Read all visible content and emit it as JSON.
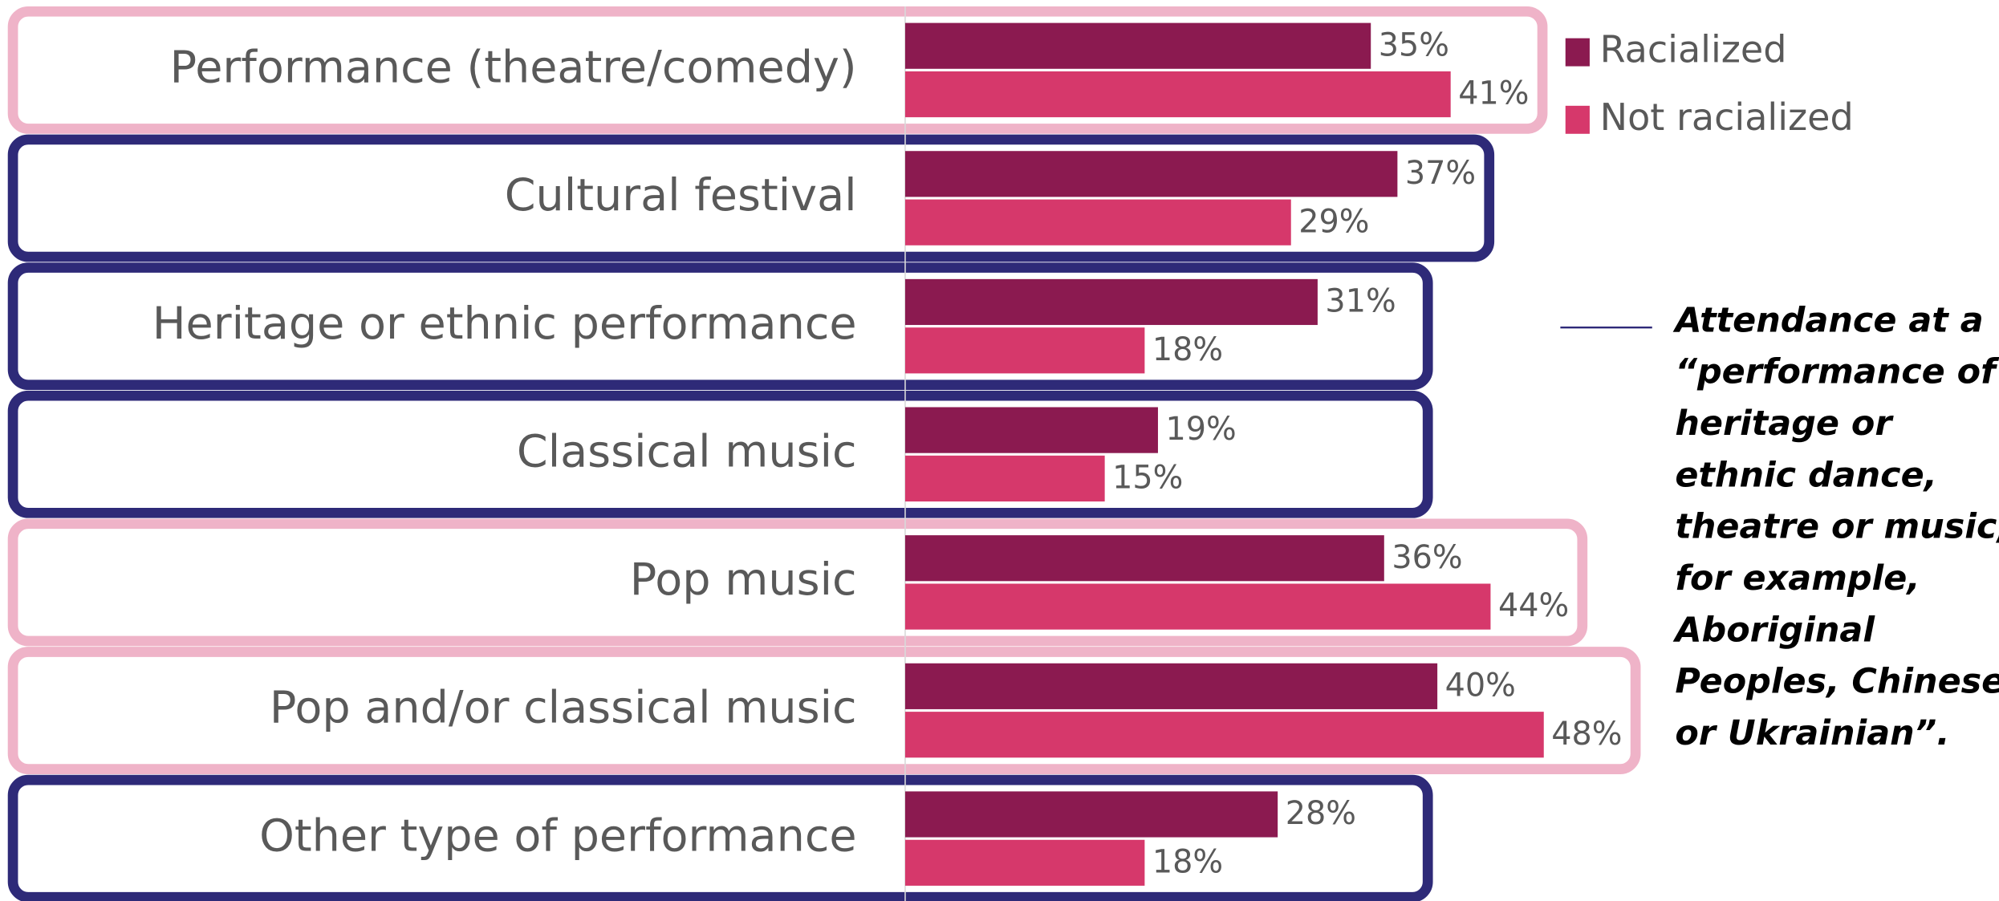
{
  "chart_data": {
    "type": "barh",
    "categories": [
      "Performance (theatre/comedy)",
      "Cultural festival",
      "Heritage or ethnic performance",
      "Classical music",
      "Pop music",
      "Pop and/or classical music",
      "Other type of performance"
    ],
    "series": [
      {
        "name": "Racialized",
        "color": "#8b1a50",
        "values": [
          35,
          37,
          31,
          19,
          36,
          40,
          28
        ],
        "value_labels": [
          "35%",
          "37%",
          "31%",
          "19%",
          "36%",
          "40%",
          "28%"
        ]
      },
      {
        "name": "Not racialized",
        "color": "#d6386b",
        "values": [
          41,
          29,
          18,
          15,
          44,
          48,
          18
        ],
        "value_labels": [
          "41%",
          "29%",
          "18%",
          "15%",
          "44%",
          "48%",
          "18%"
        ]
      }
    ],
    "category_box_colors": [
      "#efb3c8",
      "#2e2a78",
      "#2e2a78",
      "#2e2a78",
      "#efb3c8",
      "#efb3c8",
      "#2e2a78"
    ],
    "xlim": [
      0,
      48
    ],
    "legend": "top-right",
    "annotation": [
      "Attendance at a",
      "“performance of",
      "heritage or",
      "ethnic dance,",
      "theatre or music,",
      "for example,",
      "Aboriginal",
      "Peoples, Chinese",
      "or Ukrainian”."
    ]
  }
}
